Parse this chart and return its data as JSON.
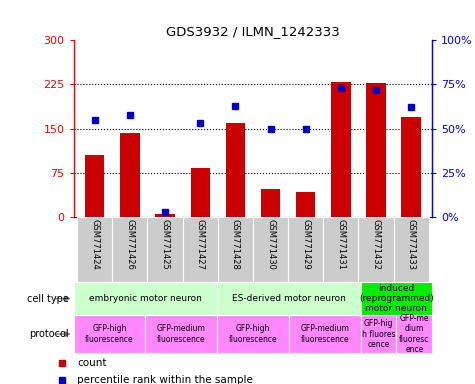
{
  "title": "GDS3932 / ILMN_1242333",
  "samples": [
    "GSM771424",
    "GSM771426",
    "GSM771425",
    "GSM771427",
    "GSM771428",
    "GSM771430",
    "GSM771429",
    "GSM771431",
    "GSM771432",
    "GSM771433"
  ],
  "counts": [
    105,
    143,
    5,
    83,
    160,
    47,
    42,
    230,
    228,
    170
  ],
  "percentiles": [
    55,
    58,
    3,
    53,
    63,
    50,
    50,
    73,
    72,
    62
  ],
  "ylim_left": [
    0,
    300
  ],
  "ylim_right": [
    0,
    100
  ],
  "yticks_left": [
    0,
    75,
    150,
    225,
    300
  ],
  "yticks_right": [
    0,
    25,
    50,
    75,
    100
  ],
  "ytick_labels_left": [
    "0",
    "75",
    "150",
    "225",
    "300"
  ],
  "ytick_labels_right": [
    "0%",
    "25%",
    "50%",
    "75%",
    "100%"
  ],
  "bar_color": "#cc0000",
  "dot_color": "#0000cc",
  "cell_type_groups": [
    {
      "label": "embryonic motor neuron",
      "start": 0,
      "end": 4,
      "color": "#ccffcc"
    },
    {
      "label": "ES-derived motor neuron",
      "start": 4,
      "end": 8,
      "color": "#ccffcc"
    },
    {
      "label": "induced\n(reprogrammed)\nmotor neuron",
      "start": 8,
      "end": 10,
      "color": "#00ee00"
    }
  ],
  "protocol_groups": [
    {
      "label": "GFP-high\nfluorescence",
      "start": 0,
      "end": 2,
      "color": "#ff88ff"
    },
    {
      "label": "GFP-medium\nfluorescence",
      "start": 2,
      "end": 4,
      "color": "#ff88ff"
    },
    {
      "label": "GFP-high\nfluorescence",
      "start": 4,
      "end": 6,
      "color": "#ff88ff"
    },
    {
      "label": "GFP-medium\nfluorescence",
      "start": 6,
      "end": 8,
      "color": "#ff88ff"
    },
    {
      "label": "GFP-hig\nh fluores\ncence",
      "start": 8,
      "end": 9,
      "color": "#ff88ff"
    },
    {
      "label": "GFP-me\ndium\nfluoresc\nence",
      "start": 9,
      "end": 10,
      "color": "#ff88ff"
    }
  ],
  "legend_count_color": "#cc0000",
  "legend_dot_color": "#0000cc",
  "sample_bg_color": "#cccccc"
}
